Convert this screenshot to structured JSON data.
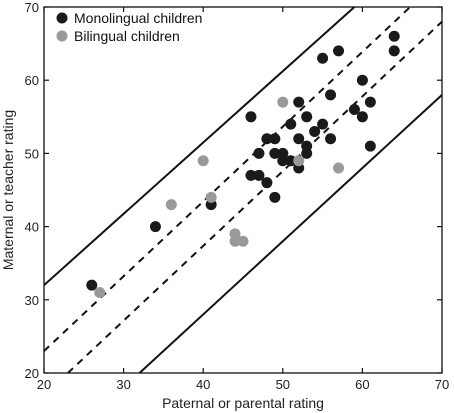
{
  "chart_data": {
    "type": "scatter",
    "title": "",
    "xlabel": "Paternal or parental rating",
    "ylabel": "Maternal or teacher rating",
    "xlim": [
      20,
      70
    ],
    "ylim": [
      20,
      70
    ],
    "xticks": [
      20,
      30,
      40,
      50,
      60,
      70
    ],
    "yticks": [
      20,
      30,
      40,
      50,
      60,
      70
    ],
    "grid": false,
    "legend_position": "top-left",
    "series": [
      {
        "name": "Monolingual children",
        "color": "#1a1a1a",
        "points": [
          [
            26,
            32
          ],
          [
            34,
            40
          ],
          [
            41,
            43
          ],
          [
            46,
            55
          ],
          [
            46,
            47
          ],
          [
            47,
            50
          ],
          [
            47,
            47
          ],
          [
            48,
            52
          ],
          [
            48,
            46
          ],
          [
            49,
            52
          ],
          [
            49,
            50
          ],
          [
            49,
            44
          ],
          [
            50,
            50
          ],
          [
            50,
            49
          ],
          [
            51,
            54
          ],
          [
            51,
            49
          ],
          [
            52,
            57
          ],
          [
            52,
            52
          ],
          [
            52,
            48
          ],
          [
            53,
            55
          ],
          [
            53,
            51
          ],
          [
            53,
            50
          ],
          [
            54,
            53
          ],
          [
            55,
            63
          ],
          [
            55,
            54
          ],
          [
            56,
            58
          ],
          [
            56,
            52
          ],
          [
            57,
            64
          ],
          [
            59,
            56
          ],
          [
            60,
            60
          ],
          [
            60,
            55
          ],
          [
            61,
            57
          ],
          [
            61,
            51
          ],
          [
            64,
            66
          ],
          [
            64,
            64
          ]
        ]
      },
      {
        "name": "Bilingual children",
        "color": "#999999",
        "points": [
          [
            27,
            31
          ],
          [
            36,
            43
          ],
          [
            40,
            49
          ],
          [
            41,
            44
          ],
          [
            44,
            39
          ],
          [
            44,
            38
          ],
          [
            45,
            38
          ],
          [
            50,
            57
          ],
          [
            52,
            49
          ],
          [
            57,
            48
          ]
        ]
      }
    ],
    "lines": [
      {
        "style": "solid",
        "points": [
          [
            20,
            32
          ],
          [
            59,
            70
          ]
        ]
      },
      {
        "style": "dashed",
        "points": [
          [
            20,
            23
          ],
          [
            66,
            70
          ]
        ]
      },
      {
        "style": "dashed",
        "points": [
          [
            23,
            20
          ],
          [
            70,
            68
          ]
        ]
      },
      {
        "style": "solid",
        "points": [
          [
            32,
            20
          ],
          [
            70,
            58
          ]
        ]
      }
    ]
  }
}
